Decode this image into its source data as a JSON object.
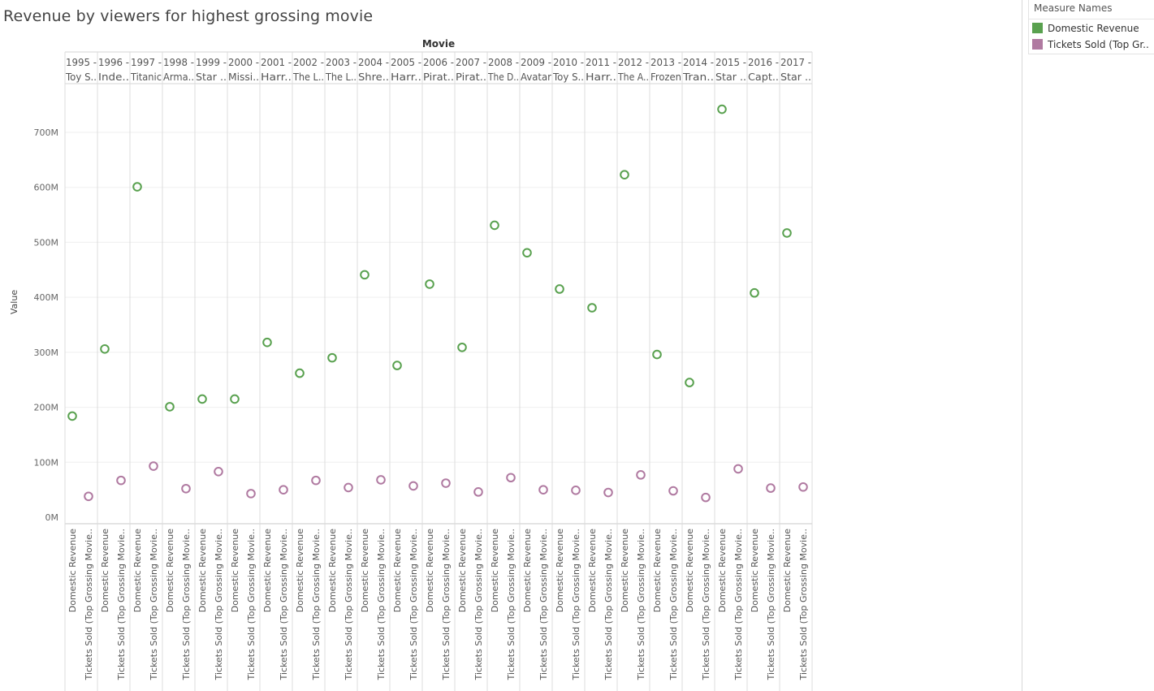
{
  "title": "Revenue by viewers for highest grossing movie",
  "legend": {
    "title": "Measure Names",
    "items": [
      {
        "label": "Domestic Revenue",
        "color": "#59a14f"
      },
      {
        "label": "Tickets Sold (Top Gr..",
        "color": "#b07aa1"
      }
    ]
  },
  "chart_data": {
    "type": "scatter",
    "title": "Revenue by viewers for highest grossing movie",
    "column_header": "Movie",
    "ylabel": "Value",
    "ylim": [
      0,
      780000000
    ],
    "yticks": [
      {
        "value": 0,
        "label": "0M"
      },
      {
        "value": 100000000,
        "label": "100M"
      },
      {
        "value": 200000000,
        "label": "200M"
      },
      {
        "value": 300000000,
        "label": "300M"
      },
      {
        "value": 400000000,
        "label": "400M"
      },
      {
        "value": 500000000,
        "label": "500M"
      },
      {
        "value": 600000000,
        "label": "600M"
      },
      {
        "value": 700000000,
        "label": "700M"
      }
    ],
    "grid": true,
    "legend_position": "top-right",
    "measure_labels": [
      "Domestic Revenue",
      "Tickets Sold (Top Grossing Movie.."
    ],
    "categories": [
      {
        "year": "1995 -",
        "movie": "Toy S.."
      },
      {
        "year": "1996 -",
        "movie": "Inde.."
      },
      {
        "year": "1997 -",
        "movie": "Titanic"
      },
      {
        "year": "1998 -",
        "movie": "Arma.."
      },
      {
        "year": "1999 -",
        "movie": "Star .."
      },
      {
        "year": "2000 -",
        "movie": "Missi.."
      },
      {
        "year": "2001 -",
        "movie": "Harr.."
      },
      {
        "year": "2002 -",
        "movie": "The L.."
      },
      {
        "year": "2003 -",
        "movie": "The L.."
      },
      {
        "year": "2004 -",
        "movie": "Shre.."
      },
      {
        "year": "2005 -",
        "movie": "Harr.."
      },
      {
        "year": "2006 -",
        "movie": "Pirat.."
      },
      {
        "year": "2007 -",
        "movie": "Pirat.."
      },
      {
        "year": "2008 -",
        "movie": "The D.."
      },
      {
        "year": "2009 -",
        "movie": "Avatar"
      },
      {
        "year": "2010 -",
        "movie": "Toy S.."
      },
      {
        "year": "2011 -",
        "movie": "Harr.."
      },
      {
        "year": "2012 -",
        "movie": "The A.."
      },
      {
        "year": "2013 -",
        "movie": "Frozen"
      },
      {
        "year": "2014 -",
        "movie": "Tran.."
      },
      {
        "year": "2015 -",
        "movie": "Star .."
      },
      {
        "year": "2016 -",
        "movie": "Capt.."
      },
      {
        "year": "2017 -",
        "movie": "Star .."
      }
    ],
    "series": [
      {
        "name": "Domestic Revenue",
        "color": "#59a14f",
        "values": [
          184000000,
          306000000,
          601000000,
          201000000,
          215000000,
          215000000,
          318000000,
          262000000,
          290000000,
          441000000,
          276000000,
          424000000,
          309000000,
          531000000,
          481000000,
          415000000,
          381000000,
          623000000,
          296000000,
          245000000,
          742000000,
          408000000,
          517000000
        ]
      },
      {
        "name": "Tickets Sold (Top Grossing Movie)",
        "color": "#b07aa1",
        "values": [
          38000000,
          67000000,
          93000000,
          52000000,
          83000000,
          43000000,
          50000000,
          67000000,
          54000000,
          68000000,
          57000000,
          62000000,
          46000000,
          72000000,
          50000000,
          49000000,
          45000000,
          77000000,
          48000000,
          36000000,
          88000000,
          53000000,
          55000000
        ]
      }
    ]
  }
}
